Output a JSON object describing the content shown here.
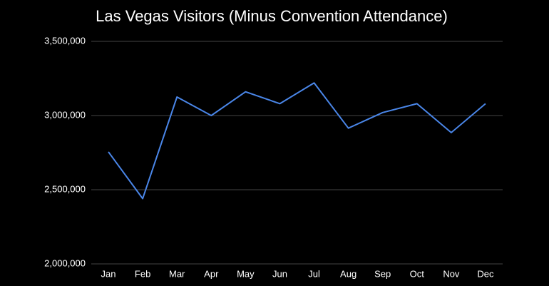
{
  "chart_data": {
    "type": "line",
    "title": "Las Vegas Visitors (Minus Convention Attendance)",
    "categories": [
      "Jan",
      "Feb",
      "Mar",
      "Apr",
      "May",
      "Jun",
      "Jul",
      "Aug",
      "Sep",
      "Oct",
      "Nov",
      "Dec"
    ],
    "series": [
      {
        "color": "#4a86e8",
        "values": [
          2755000,
          2440000,
          3125000,
          3000000,
          3160000,
          3080000,
          3220000,
          2915000,
          3020000,
          3080000,
          2885000,
          3080000
        ]
      }
    ],
    "ylim": [
      2000000,
      3500000
    ],
    "yticks": [
      {
        "value": 2000000,
        "label": "2,000,000"
      },
      {
        "value": 2500000,
        "label": "2,500,000"
      },
      {
        "value": 3000000,
        "label": "3,000,000"
      },
      {
        "value": 3500000,
        "label": "3,500,000"
      }
    ],
    "grid": true
  }
}
